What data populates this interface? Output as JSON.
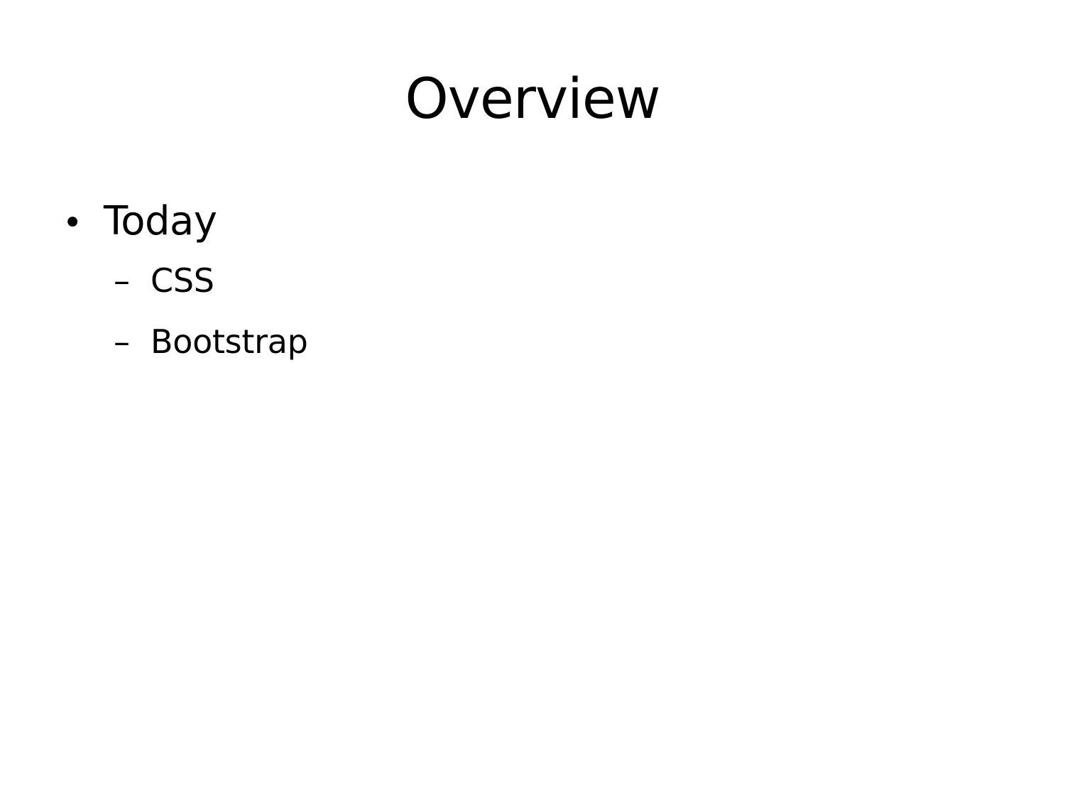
{
  "slide": {
    "title": "Overview",
    "bullets": [
      {
        "marker": "•",
        "text": "Today",
        "sub_items": [
          {
            "marker": "–",
            "text": "CSS"
          },
          {
            "marker": "–",
            "text": "Bootstrap"
          }
        ]
      }
    ]
  }
}
